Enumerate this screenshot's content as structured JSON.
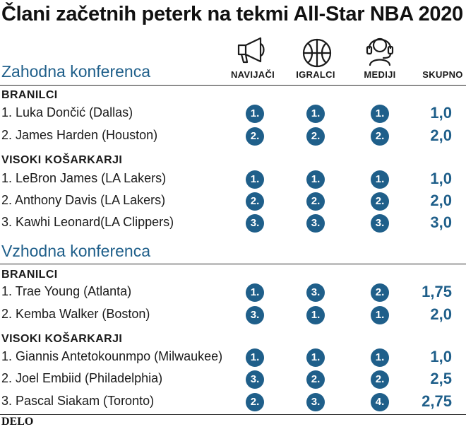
{
  "title": "Člani začetnih peterk na tekmi All-Star NBA 2020",
  "columns": {
    "fans": "NAVIJAČI",
    "players": "IGRALCI",
    "media": "MEDIJI",
    "total": "SKUPNO"
  },
  "icons": {
    "fans": "megaphone-icon",
    "players": "basketball-icon",
    "media": "headset-icon"
  },
  "colors": {
    "accent": "#1f5f8a"
  },
  "west": {
    "name": "Zahodna konferenca",
    "guards_label": "BRANILCI",
    "guards": [
      {
        "name": "1. Luka Dončić (Dallas)",
        "fans": "1.",
        "players": "1.",
        "media": "1.",
        "total": "1,0"
      },
      {
        "name": "2. James Harden (Houston)",
        "fans": "2.",
        "players": "2.",
        "media": "2.",
        "total": "2,0"
      }
    ],
    "frontcourt_label": "VISOKI KOŠARKARJI",
    "frontcourt": [
      {
        "name": "1. LeBron James (LA Lakers)",
        "fans": "1.",
        "players": "1.",
        "media": "1.",
        "total": "1,0"
      },
      {
        "name": "2. Anthony Davis (LA Lakers)",
        "fans": "2.",
        "players": "2.",
        "media": "2.",
        "total": "2,0"
      },
      {
        "name": "3. Kawhi Leonard(LA Clippers)",
        "fans": "3.",
        "players": "3.",
        "media": "3.",
        "total": "3,0"
      }
    ]
  },
  "east": {
    "name": "Vzhodna konferenca",
    "guards_label": "BRANILCI",
    "guards": [
      {
        "name": "1. Trae Young (Atlanta)",
        "fans": "1.",
        "players": "3.",
        "media": "2.",
        "total": "1,75"
      },
      {
        "name": "2. Kemba Walker (Boston)",
        "fans": "3.",
        "players": "1.",
        "media": "1.",
        "total": "2,0"
      }
    ],
    "frontcourt_label": "VISOKI KOŠARKARJI",
    "frontcourt": [
      {
        "name": "1. Giannis Antetokounmpo (Milwaukee)",
        "fans": "1.",
        "players": "1.",
        "media": "1.",
        "total": "1,0"
      },
      {
        "name": "2. Joel Embiid (Philadelphia)",
        "fans": "3.",
        "players": "2.",
        "media": "2.",
        "total": "2,5"
      },
      {
        "name": "3. Pascal Siakam (Toronto)",
        "fans": "2.",
        "players": "3.",
        "media": "4.",
        "total": "2,75"
      }
    ]
  },
  "footer": {
    "logo": "DELO"
  }
}
